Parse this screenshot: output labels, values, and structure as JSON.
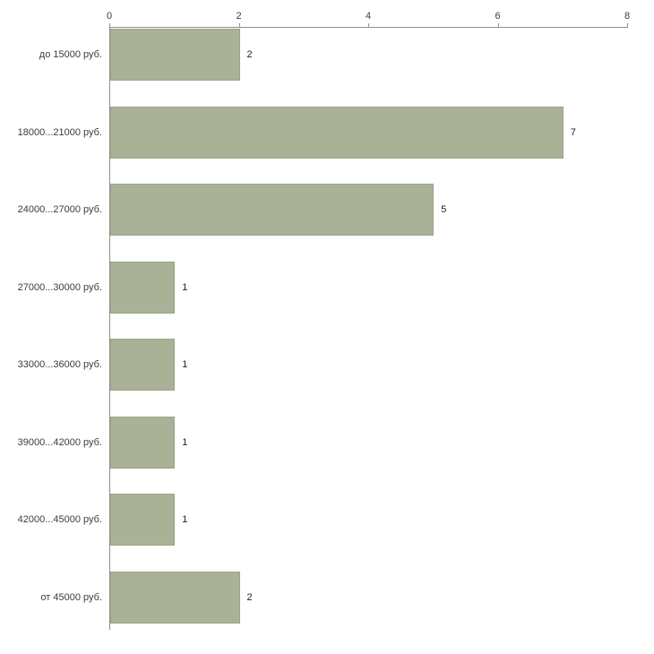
{
  "chart_data": {
    "type": "bar",
    "orientation": "horizontal",
    "title": "",
    "xlabel": "",
    "ylabel": "",
    "categories": [
      "до 15000 руб.",
      "18000...21000 руб.",
      "24000...27000 руб.",
      "27000...30000 руб.",
      "33000...36000 руб.",
      "39000...42000 руб.",
      "42000...45000 руб.",
      "от 45000 руб."
    ],
    "values": [
      2,
      7,
      5,
      1,
      1,
      1,
      1,
      2
    ],
    "xlim": [
      0,
      8
    ],
    "xticks": [
      0,
      2,
      4,
      6,
      8
    ],
    "grid": false,
    "legend_position": "none",
    "bar_color": "#a9b296",
    "bar_border_color": "#9aa489",
    "axis_color": "#8f8f8f",
    "text_color": "#3c3c3c"
  }
}
